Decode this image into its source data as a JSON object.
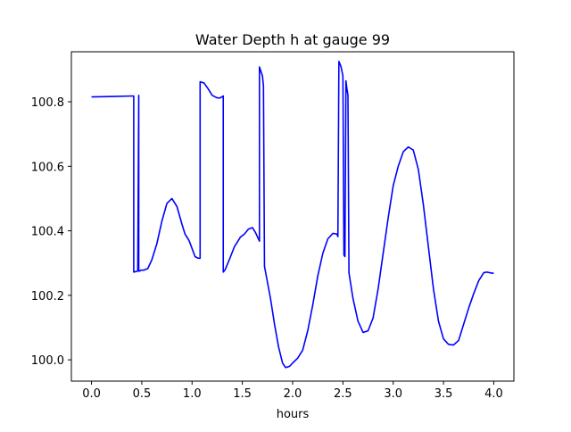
{
  "chart_data": {
    "type": "line",
    "title": "Water Depth h at gauge 99",
    "xlabel": "hours",
    "ylabel": "",
    "xlim": [
      -0.2,
      4.2
    ],
    "ylim": [
      99.934,
      100.955
    ],
    "x_ticks": [
      0.0,
      0.5,
      1.0,
      1.5,
      2.0,
      2.5,
      3.0,
      3.5,
      4.0
    ],
    "x_tick_labels": [
      "0.0",
      "0.5",
      "1.0",
      "1.5",
      "2.0",
      "2.5",
      "3.0",
      "3.5",
      "4.0"
    ],
    "y_ticks": [
      100.0,
      100.2,
      100.4,
      100.6,
      100.8
    ],
    "y_tick_labels": [
      "100.0",
      "100.2",
      "100.4",
      "100.6",
      "100.8"
    ],
    "grid": false,
    "legend": "none",
    "series": [
      {
        "color": "#0000ff",
        "x": [
          0.0,
          0.42,
          0.42,
          0.46,
          0.47,
          0.47,
          0.48,
          0.49,
          0.52,
          0.56,
          0.6,
          0.65,
          0.7,
          0.75,
          0.8,
          0.85,
          0.9,
          0.93,
          0.97,
          1.0,
          1.03,
          1.06,
          1.08,
          1.08,
          1.12,
          1.16,
          1.2,
          1.25,
          1.28,
          1.31,
          1.31,
          1.33,
          1.37,
          1.42,
          1.48,
          1.52,
          1.56,
          1.6,
          1.63,
          1.67,
          1.67,
          1.7,
          1.71,
          1.72,
          1.78,
          1.82,
          1.86,
          1.9,
          1.93,
          1.97,
          2.0,
          2.05,
          2.1,
          2.15,
          2.2,
          2.25,
          2.3,
          2.35,
          2.4,
          2.44,
          2.45,
          2.46,
          2.48,
          2.5,
          2.51,
          2.52,
          2.53,
          2.54,
          2.55,
          2.56,
          2.57,
          2.6,
          2.65,
          2.7,
          2.75,
          2.8,
          2.85,
          2.9,
          2.95,
          3.0,
          3.05,
          3.1,
          3.15,
          3.2,
          3.25,
          3.3,
          3.35,
          3.4,
          3.45,
          3.5,
          3.55,
          3.6,
          3.65,
          3.7,
          3.75,
          3.8,
          3.85,
          3.9,
          3.93,
          3.96,
          4.0
        ],
        "y": [
          100.815,
          100.818,
          100.272,
          100.275,
          100.82,
          100.275,
          100.275,
          100.278,
          100.278,
          100.283,
          100.31,
          100.36,
          100.43,
          100.485,
          100.5,
          100.475,
          100.42,
          100.39,
          100.37,
          100.345,
          100.32,
          100.315,
          100.315,
          100.862,
          100.858,
          100.84,
          100.82,
          100.812,
          100.812,
          100.818,
          100.272,
          100.28,
          100.31,
          100.35,
          100.38,
          100.39,
          100.405,
          100.41,
          100.395,
          100.368,
          100.908,
          100.88,
          100.848,
          100.29,
          100.19,
          100.11,
          100.04,
          99.99,
          99.976,
          99.98,
          99.99,
          100.005,
          100.03,
          100.09,
          100.17,
          100.26,
          100.33,
          100.375,
          100.392,
          100.39,
          100.382,
          100.925,
          100.91,
          100.88,
          100.325,
          100.32,
          100.865,
          100.84,
          100.82,
          100.27,
          100.25,
          100.19,
          100.12,
          100.085,
          100.09,
          100.13,
          100.22,
          100.33,
          100.44,
          100.54,
          100.6,
          100.645,
          100.66,
          100.65,
          100.59,
          100.48,
          100.35,
          100.22,
          100.12,
          100.065,
          100.048,
          100.046,
          100.06,
          100.11,
          100.16,
          100.205,
          100.245,
          100.27,
          100.272,
          100.27,
          100.268
        ]
      }
    ]
  }
}
